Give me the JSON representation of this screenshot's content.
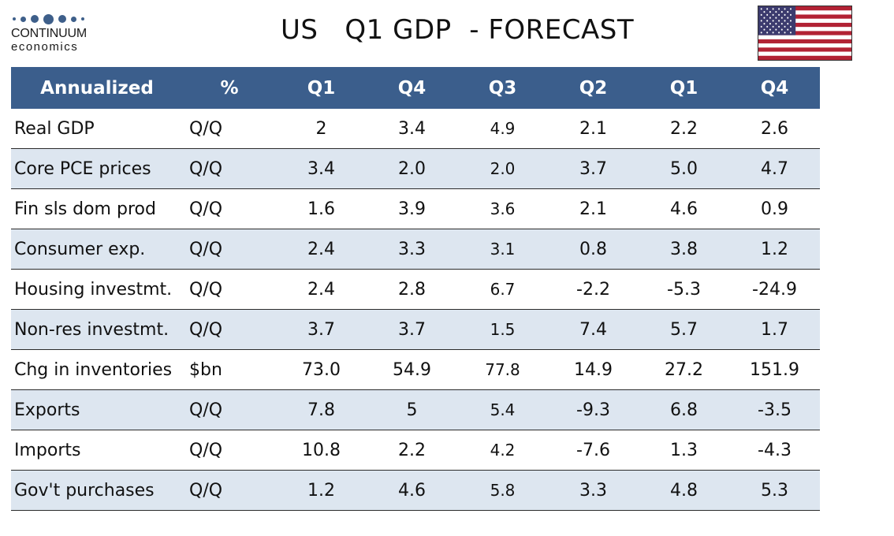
{
  "logo": {
    "name": "CONTINUUM",
    "sub": "economics"
  },
  "title": "US   Q1 GDP  - FORECAST",
  "colors": {
    "header_bg": "#3b5e8c",
    "row_shade": "#dde6f0"
  },
  "table": {
    "headers": [
      "Annualized",
      "%",
      "Q1",
      "Q4",
      "Q3",
      "Q2",
      "Q1",
      "Q4"
    ],
    "rows": [
      {
        "label": "Real GDP",
        "unit": "Q/Q",
        "values": [
          "2",
          "3.4",
          "4.9",
          "2.1",
          "2.2",
          "2.6"
        ]
      },
      {
        "label": "Core PCE prices",
        "unit": "Q/Q",
        "values": [
          "3.4",
          "2.0",
          "2.0",
          "3.7",
          "5.0",
          "4.7"
        ]
      },
      {
        "label": "Fin sls dom prod",
        "unit": "Q/Q",
        "values": [
          "1.6",
          "3.9",
          "3.6",
          "2.1",
          "4.6",
          "0.9"
        ]
      },
      {
        "label": "Consumer exp.",
        "unit": "Q/Q",
        "values": [
          "2.4",
          "3.3",
          "3.1",
          "0.8",
          "3.8",
          "1.2"
        ]
      },
      {
        "label": "Housing investmt.",
        "unit": "Q/Q",
        "values": [
          "2.4",
          "2.8",
          "6.7",
          "-2.2",
          "-5.3",
          "-24.9"
        ]
      },
      {
        "label": "Non-res investmt.",
        "unit": "Q/Q",
        "values": [
          "3.7",
          "3.7",
          "1.5",
          "7.4",
          "5.7",
          "1.7"
        ]
      },
      {
        "label": "Chg in inventories",
        "unit": "$bn",
        "values": [
          "73.0",
          "54.9",
          "77.8",
          "14.9",
          "27.2",
          "151.9"
        ]
      },
      {
        "label": "Exports",
        "unit": "Q/Q",
        "values": [
          "7.8",
          "5",
          "5.4",
          "-9.3",
          "6.8",
          "-3.5"
        ]
      },
      {
        "label": "Imports",
        "unit": "Q/Q",
        "values": [
          "10.8",
          "2.2",
          "4.2",
          "-7.6",
          "1.3",
          "-4.3"
        ]
      },
      {
        "label": "Gov't purchases",
        "unit": "Q/Q",
        "values": [
          "1.2",
          "4.6",
          "5.8",
          "3.3",
          "4.8",
          "5.3"
        ]
      }
    ]
  }
}
